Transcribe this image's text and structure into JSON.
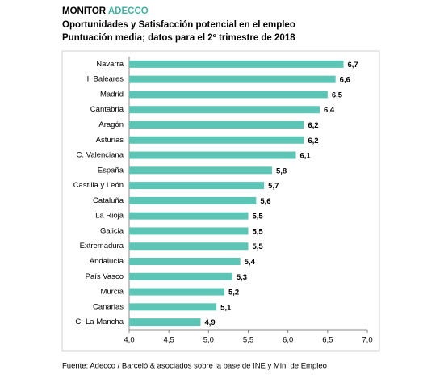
{
  "chart_data": {
    "type": "barh",
    "title": "MONITOR",
    "title_brand": "ADECCO",
    "subtitle": "Oportunidades y Satisfacción potencial en el empleo",
    "subtitle2": "Puntuación media; datos para el 2º trimestre de 2018",
    "source": "Fuente: Adecco / Barceló & asociados sobre la base de INE y Min. de Empleo",
    "categories": [
      "Navarra",
      "I. Baleares",
      "Madrid",
      "Cantabria",
      "Aragón",
      "Asturias",
      "C. Valenciana",
      "España",
      "Castilla y León",
      "Cataluña",
      "La Rioja",
      "Galicia",
      "Extremadura",
      "Andalucía",
      "País Vasco",
      "Murcia",
      "Canarias",
      "C.-La Mancha"
    ],
    "values": [
      6.7,
      6.6,
      6.5,
      6.4,
      6.2,
      6.2,
      6.1,
      5.8,
      5.7,
      5.6,
      5.5,
      5.5,
      5.5,
      5.4,
      5.3,
      5.2,
      5.1,
      4.9
    ],
    "value_labels": [
      "6,7",
      "6,6",
      "6,5",
      "6,4",
      "6,2",
      "6,2",
      "6,1",
      "5,8",
      "5,7",
      "5,6",
      "5,5",
      "5,5",
      "5,5",
      "5,4",
      "5,3",
      "5,2",
      "5,1",
      "4,9"
    ],
    "color": "#5cc5b6",
    "brand_color": "#3fb3a3",
    "xlim": [
      4.0,
      7.0
    ],
    "xticks": [
      {
        "value": 4.0,
        "label": "4,0"
      },
      {
        "value": 4.5,
        "label": "4,5"
      },
      {
        "value": 5.0,
        "label": "5,0"
      },
      {
        "value": 5.5,
        "label": "5,5"
      },
      {
        "value": 6.0,
        "label": "6,0"
      },
      {
        "value": 6.5,
        "label": "6,5"
      },
      {
        "value": 7.0,
        "label": "7,0"
      }
    ]
  }
}
